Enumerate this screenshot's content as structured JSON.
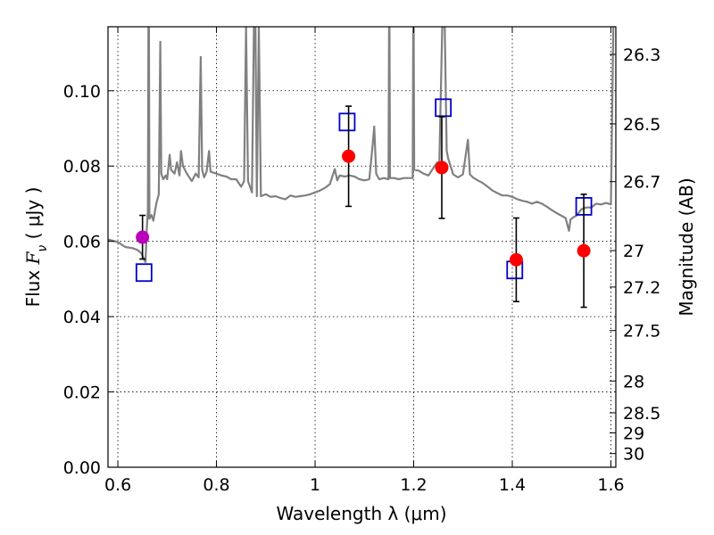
{
  "chart_data": {
    "type": "scatter",
    "xlabel": "Wavelength  λ (μm)",
    "ylabel": "Flux  F_ν  ( μJy )",
    "ylabel_parts": {
      "prefix": "Flux  ",
      "symbol": "F",
      "subscript": "ν",
      "unit": "  ( μJy )"
    },
    "right_ylabel": "Magnitude (AB)",
    "xlim": [
      0.58,
      1.61
    ],
    "ylim": [
      0.0,
      0.117
    ],
    "grid": true,
    "x_ticks": [
      {
        "value": 0.6,
        "label": "0.6"
      },
      {
        "value": 0.8,
        "label": "0.8"
      },
      {
        "value": 1.0,
        "label": "1"
      },
      {
        "value": 1.2,
        "label": "1.2"
      },
      {
        "value": 1.4,
        "label": "1.4"
      },
      {
        "value": 1.6,
        "label": "1.6"
      }
    ],
    "y_ticks": [
      {
        "value": 0.0,
        "label": "0.00"
      },
      {
        "value": 0.02,
        "label": "0.02"
      },
      {
        "value": 0.04,
        "label": "0.04"
      },
      {
        "value": 0.06,
        "label": "0.06"
      },
      {
        "value": 0.08,
        "label": "0.08"
      },
      {
        "value": 0.1,
        "label": "0.10"
      }
    ],
    "right_ticks": [
      {
        "mag": 26.3,
        "label": "26.3"
      },
      {
        "mag": 26.5,
        "label": "26.5"
      },
      {
        "mag": 26.7,
        "label": "26.7"
      },
      {
        "mag": 27.0,
        "label": "27"
      },
      {
        "mag": 27.2,
        "label": "27.2"
      },
      {
        "mag": 27.5,
        "label": "27.5"
      },
      {
        "mag": 28.0,
        "label": "28"
      },
      {
        "mag": 28.5,
        "label": "28.5"
      },
      {
        "mag": 29.0,
        "label": "29"
      },
      {
        "mag": 30.0,
        "label": "30"
      }
    ],
    "series": [
      {
        "marker": "line",
        "color": "#808080",
        "points": [
          [
            0.58,
            0.0605
          ],
          [
            0.6,
            0.0598
          ],
          [
            0.615,
            0.0585
          ],
          [
            0.63,
            0.0582
          ],
          [
            0.64,
            0.0577
          ],
          [
            0.648,
            0.0568
          ],
          [
            0.652,
            0.0555
          ],
          [
            0.656,
            0.0545
          ],
          [
            0.659,
            0.064
          ],
          [
            0.661,
            0.068
          ],
          [
            0.662,
            0.117
          ],
          [
            0.663,
            0.117
          ],
          [
            0.664,
            0.066
          ],
          [
            0.668,
            0.067
          ],
          [
            0.672,
            0.0655
          ],
          [
            0.678,
            0.07
          ],
          [
            0.683,
            0.0725
          ],
          [
            0.686,
            0.113
          ],
          [
            0.688,
            0.078
          ],
          [
            0.692,
            0.0765
          ],
          [
            0.697,
            0.0775
          ],
          [
            0.7,
            0.0765
          ],
          [
            0.705,
            0.083
          ],
          [
            0.708,
            0.079
          ],
          [
            0.715,
            0.078
          ],
          [
            0.72,
            0.081
          ],
          [
            0.725,
            0.0775
          ],
          [
            0.728,
            0.084
          ],
          [
            0.732,
            0.08
          ],
          [
            0.74,
            0.078
          ],
          [
            0.75,
            0.076
          ],
          [
            0.758,
            0.078
          ],
          [
            0.764,
            0.077
          ],
          [
            0.768,
            0.109
          ],
          [
            0.771,
            0.079
          ],
          [
            0.775,
            0.077
          ],
          [
            0.78,
            0.0785
          ],
          [
            0.785,
            0.084
          ],
          [
            0.788,
            0.0785
          ],
          [
            0.8,
            0.078
          ],
          [
            0.81,
            0.0775
          ],
          [
            0.82,
            0.0772
          ],
          [
            0.83,
            0.0765
          ],
          [
            0.84,
            0.0765
          ],
          [
            0.85,
            0.0745
          ],
          [
            0.856,
            0.076
          ],
          [
            0.86,
            0.117
          ],
          [
            0.864,
            0.076
          ],
          [
            0.868,
            0.0745
          ],
          [
            0.872,
            0.073
          ],
          [
            0.876,
            0.117
          ],
          [
            0.879,
            0.117
          ],
          [
            0.882,
            0.072
          ],
          [
            0.886,
            0.117
          ],
          [
            0.89,
            0.072
          ],
          [
            0.9,
            0.0725
          ],
          [
            0.91,
            0.0718
          ],
          [
            0.92,
            0.072
          ],
          [
            0.93,
            0.0715
          ],
          [
            0.94,
            0.0712
          ],
          [
            0.95,
            0.0722
          ],
          [
            0.96,
            0.0718
          ],
          [
            0.97,
            0.072
          ],
          [
            0.98,
            0.0722
          ],
          [
            0.99,
            0.0725
          ],
          [
            1.0,
            0.073
          ],
          [
            1.01,
            0.0735
          ],
          [
            1.02,
            0.0742
          ],
          [
            1.03,
            0.0752
          ],
          [
            1.04,
            0.0792
          ],
          [
            1.045,
            0.0762
          ],
          [
            1.05,
            0.0775
          ],
          [
            1.06,
            0.0772
          ],
          [
            1.07,
            0.0775
          ],
          [
            1.08,
            0.0772
          ],
          [
            1.09,
            0.0765
          ],
          [
            1.1,
            0.0762
          ],
          [
            1.11,
            0.0765
          ],
          [
            1.117,
            0.086
          ],
          [
            1.12,
            0.0905
          ],
          [
            1.124,
            0.078
          ],
          [
            1.13,
            0.0765
          ],
          [
            1.14,
            0.0768
          ],
          [
            1.149,
            0.0765
          ],
          [
            1.15,
            0.117
          ],
          [
            1.151,
            0.117
          ],
          [
            1.152,
            0.0768
          ],
          [
            1.16,
            0.0768
          ],
          [
            1.17,
            0.0765
          ],
          [
            1.18,
            0.0768
          ],
          [
            1.19,
            0.0768
          ],
          [
            1.198,
            0.0768
          ],
          [
            1.199,
            0.117
          ],
          [
            1.2,
            0.117
          ],
          [
            1.201,
            0.079
          ],
          [
            1.21,
            0.0788
          ],
          [
            1.22,
            0.078
          ],
          [
            1.23,
            0.0775
          ],
          [
            1.24,
            0.0795
          ],
          [
            1.248,
            0.081
          ],
          [
            1.252,
            0.08
          ],
          [
            1.258,
            0.117
          ],
          [
            1.263,
            0.117
          ],
          [
            1.267,
            0.084
          ],
          [
            1.27,
            0.082
          ],
          [
            1.28,
            0.0778
          ],
          [
            1.29,
            0.077
          ],
          [
            1.3,
            0.0778
          ],
          [
            1.31,
            0.087
          ],
          [
            1.314,
            0.0778
          ],
          [
            1.32,
            0.077
          ],
          [
            1.33,
            0.0762
          ],
          [
            1.34,
            0.0755
          ],
          [
            1.35,
            0.0745
          ],
          [
            1.36,
            0.0735
          ],
          [
            1.37,
            0.0728
          ],
          [
            1.38,
            0.0722
          ],
          [
            1.39,
            0.0722
          ],
          [
            1.4,
            0.0718
          ],
          [
            1.41,
            0.0712
          ],
          [
            1.42,
            0.0708
          ],
          [
            1.43,
            0.0705
          ],
          [
            1.44,
            0.07
          ],
          [
            1.45,
            0.0705
          ],
          [
            1.46,
            0.07
          ],
          [
            1.47,
            0.0692
          ],
          [
            1.48,
            0.0683
          ],
          [
            1.49,
            0.0675
          ],
          [
            1.5,
            0.0668
          ],
          [
            1.508,
            0.0662
          ],
          [
            1.512,
            0.0642
          ],
          [
            1.515,
            0.0628
          ],
          [
            1.518,
            0.0658
          ],
          [
            1.525,
            0.0665
          ],
          [
            1.53,
            0.0668
          ],
          [
            1.54,
            0.0685
          ],
          [
            1.55,
            0.069
          ],
          [
            1.56,
            0.069
          ],
          [
            1.57,
            0.07
          ],
          [
            1.58,
            0.0698
          ],
          [
            1.59,
            0.0702
          ],
          [
            1.6,
            0.0698
          ],
          [
            1.605,
            0.117
          ]
        ]
      },
      {
        "marker": "square",
        "color": "#0000cc",
        "points": [
          [
            0.653,
            0.0517
          ],
          [
            1.065,
            0.0917
          ],
          [
            1.26,
            0.0955
          ],
          [
            1.405,
            0.0524
          ],
          [
            1.545,
            0.0693
          ]
        ]
      },
      {
        "marker": "circle",
        "color": "#ff0000",
        "points": [
          {
            "x": 1.068,
            "y": 0.0826,
            "err": 0.0133
          },
          {
            "x": 1.257,
            "y": 0.0796,
            "err": 0.0135
          },
          {
            "x": 1.408,
            "y": 0.0551,
            "err": 0.0111
          },
          {
            "x": 1.545,
            "y": 0.0575,
            "err": 0.015
          }
        ]
      },
      {
        "marker": "circle",
        "color": "#bb00bb",
        "points": [
          {
            "x": 0.65,
            "y": 0.0611,
            "err": 0.0058
          }
        ]
      }
    ]
  }
}
